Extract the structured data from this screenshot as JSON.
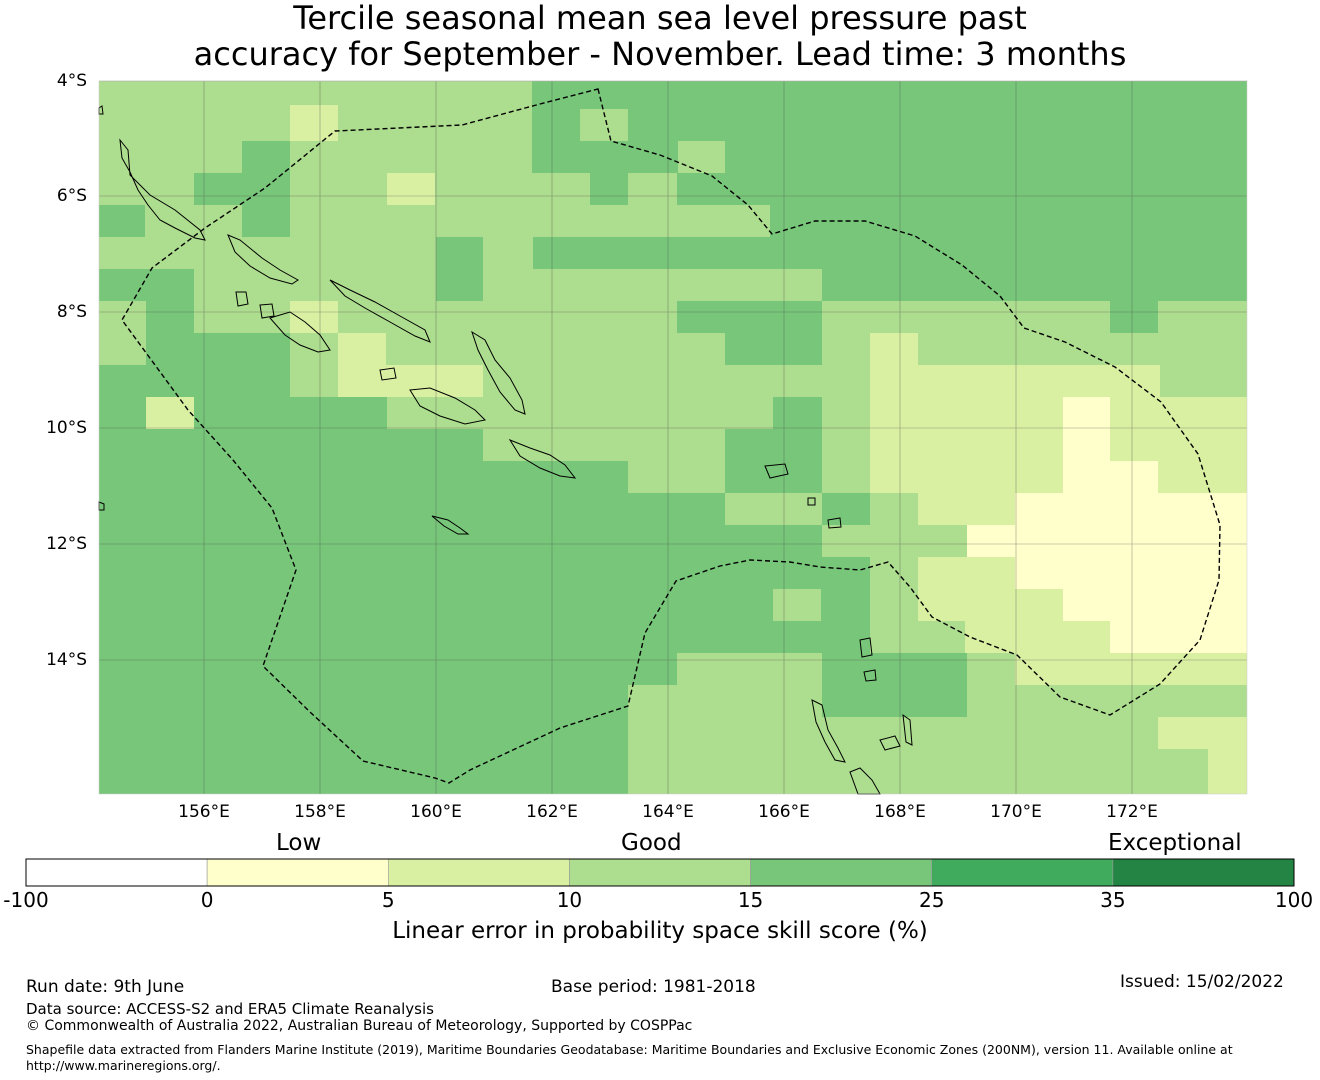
{
  "title": {
    "line1": "Tercile seasonal mean sea level pressure past",
    "line2": "accuracy for September - November. Lead time: 3 months"
  },
  "map": {
    "lat_labels": [
      "4°S",
      "6°S",
      "8°S",
      "10°S",
      "12°S",
      "14°S"
    ],
    "lon_labels": [
      "156°E",
      "158°E",
      "160°E",
      "162°E",
      "164°E",
      "166°E",
      "168°E",
      "170°E",
      "172°E"
    ],
    "lon_range": [
      154.2,
      174.0
    ],
    "lat_range": [
      -16.3,
      -4.0
    ],
    "colors": {
      "c0": "#ffffcc",
      "c5": "#d9f0a3",
      "c10": "#addd8e",
      "c15": "#78c679",
      "c25": "#41ab5d",
      "c35": "#238443"
    }
  },
  "colorbar": {
    "category_labels": [
      "Low",
      "Good",
      "Exceptional"
    ],
    "ticks": [
      "-100",
      "0",
      "5",
      "10",
      "15",
      "25",
      "35",
      "100"
    ],
    "colors": [
      "#ffffff",
      "#ffffcc",
      "#d9f0a3",
      "#addd8e",
      "#78c679",
      "#41ab5d",
      "#238443"
    ],
    "label": "Linear error in probability space skill score (%)"
  },
  "footer": {
    "run_date": "Run date: 9th June",
    "base_period": "Base period: 1981-2018",
    "issued": "Issued: 15/02/2022",
    "data_source": "Data source: ACCESS-S2 and ERA5 Climate Reanalysis",
    "copyright": "© Commonwealth of Australia 2022, Australian Bureau of Meteorology, Supported by COSPPac",
    "shapefile_1": "Shapefile data extracted from Flanders Marine Institute (2019), Maritime Boundaries Geodatabase: Maritime Boundaries and Exclusive Economic Zones (200NM), version 11. Available online at",
    "shapefile_2": "http://www.marineregions.org/."
  }
}
